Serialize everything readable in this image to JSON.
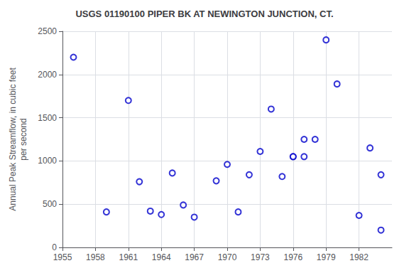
{
  "chart_data": {
    "type": "scatter",
    "title": "USGS 01190100 PIPER BK AT NEWINGTON JUNCTION, CT.",
    "ylabel": "Annual Peak Streamflow, in cubic feet\nper second",
    "x": [
      1956,
      1959,
      1961,
      1962,
      1963,
      1964,
      1965,
      1966,
      1967,
      1969,
      1970,
      1972,
      1973,
      1974,
      1976,
      1977,
      1978,
      1979,
      1980,
      1982,
      1983,
      1984,
      1971,
      1975,
      1976,
      1977,
      1984
    ],
    "values": [
      2200,
      410,
      1700,
      760,
      420,
      380,
      860,
      490,
      350,
      770,
      960,
      840,
      1110,
      1600,
      1050,
      1050,
      1250,
      2400,
      1890,
      370,
      1150,
      840,
      410,
      820,
      1050,
      1250,
      200
    ],
    "color": "#0000CC",
    "marker": "circle",
    "xlim": [
      1955,
      1985
    ],
    "ylim": [
      0,
      2500
    ],
    "xticks": [
      1955,
      1958,
      1961,
      1964,
      1967,
      1970,
      1973,
      1976,
      1979,
      1982
    ],
    "yticks": [
      0,
      500,
      1000,
      1500,
      2000,
      2500
    ],
    "grid": true
  }
}
